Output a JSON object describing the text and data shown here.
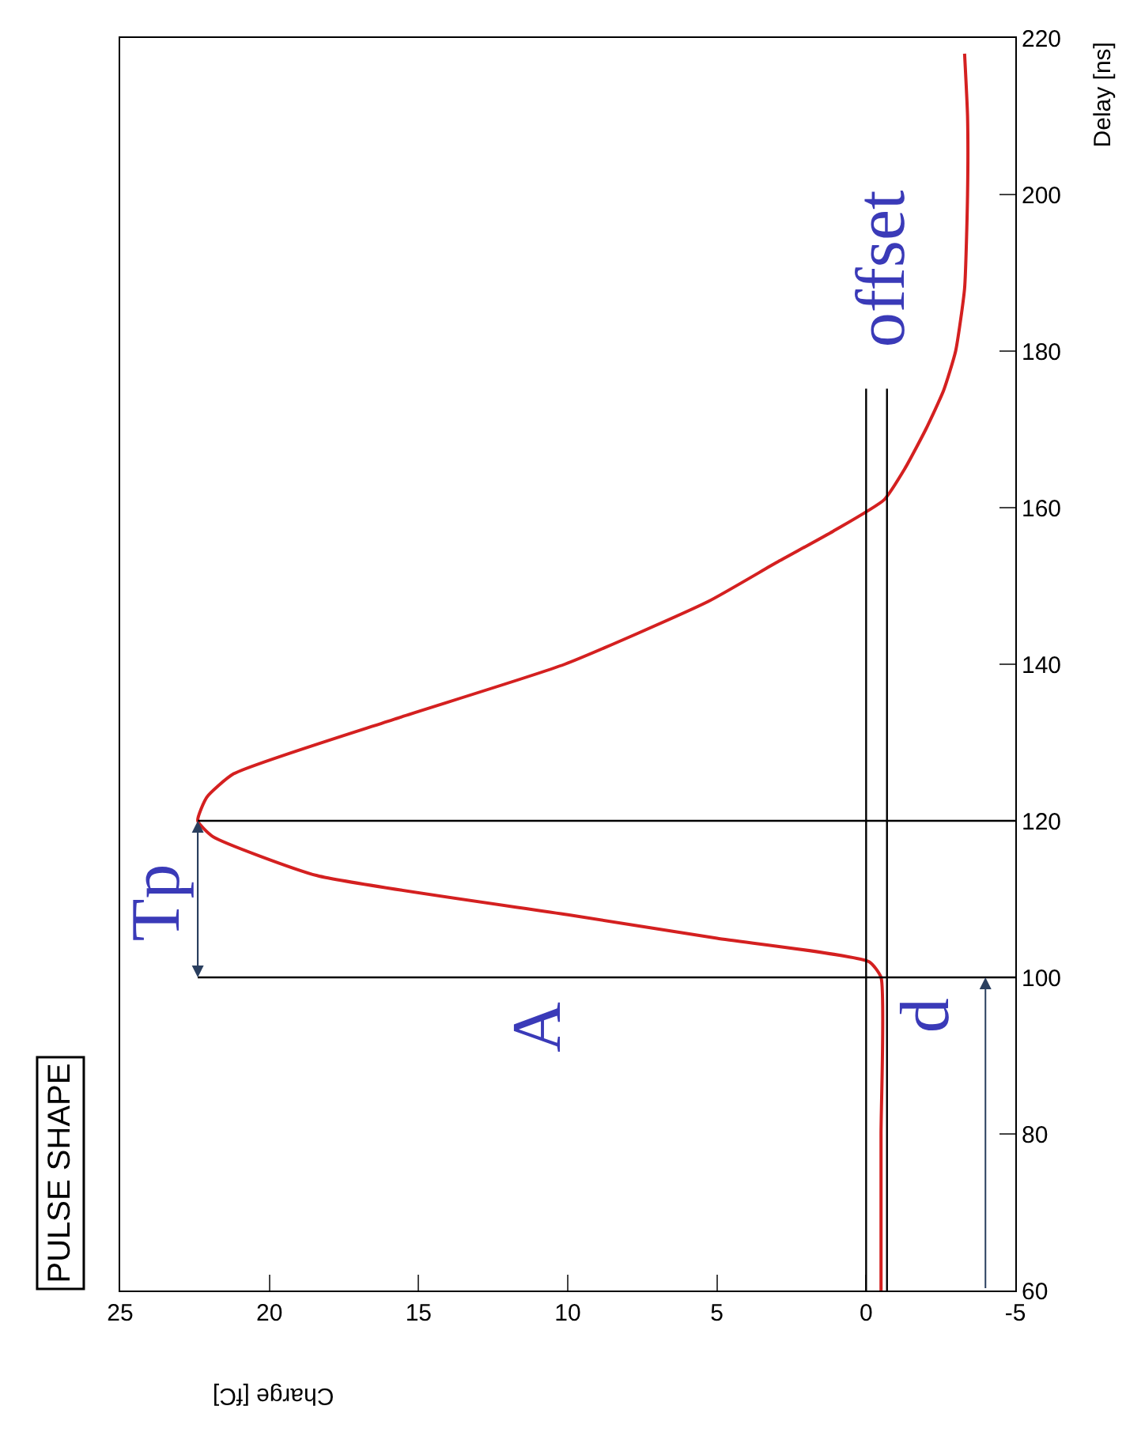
{
  "chart_data": {
    "type": "line",
    "title": "PULSE SHAPE",
    "xlabel": "Charge [fC]",
    "ylabel": "Delay [ns]",
    "series": [
      {
        "color": "#d42020",
        "x": [
          -0.5,
          -0.5,
          -0.5,
          -0.1,
          5,
          10,
          18.4,
          21.9,
          22.4,
          22.1,
          21.2,
          15.8,
          10.1,
          5.3,
          3.0,
          1.1,
          -0.6,
          -1.3,
          -2.0,
          -2.6,
          -3.0,
          -3.3,
          -3.4,
          -3.4,
          -3.3
        ],
        "values": [
          60,
          80,
          100,
          102,
          105,
          108,
          113,
          118,
          120,
          123,
          126,
          133,
          140,
          148,
          153,
          157,
          161,
          165,
          170,
          175,
          180,
          188,
          200,
          210,
          218
        ]
      }
    ],
    "xlim": [
      25,
      -5
    ],
    "ylim": [
      60,
      220
    ],
    "xticks": [
      25,
      20,
      15,
      10,
      5,
      0,
      -5
    ],
    "yticks": [
      60,
      80,
      100,
      120,
      140,
      160,
      180,
      200,
      220
    ],
    "ref_lines": [
      {
        "axis": "y",
        "value": 100
      },
      {
        "axis": "y",
        "value": 120
      },
      {
        "axis": "x",
        "value": 0
      },
      {
        "axis": "x",
        "value": -0.7
      }
    ],
    "annotations": [
      "Tp",
      "A",
      "d",
      "offset"
    ],
    "legend": false,
    "marker": "none",
    "line_style": "solid"
  }
}
